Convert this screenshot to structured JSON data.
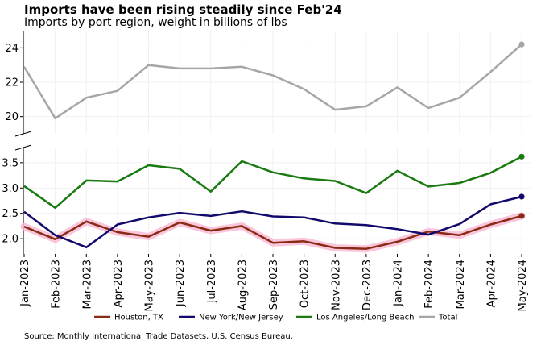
{
  "chart_data": {
    "type": "line",
    "title": "Imports have been rising steadily since Feb'24",
    "subtitle": "Imports by port region, weight in billions of lbs",
    "source": "Source: Monthly International Trade Datasets, U.S. Census Bureau.",
    "categories": [
      "Jan-2023",
      "Feb-2023",
      "Mar-2023",
      "Apr-2023",
      "May-2023",
      "Jun-2023",
      "Jul-2023",
      "Aug-2023",
      "Sep-2023",
      "Oct-2023",
      "Nov-2023",
      "Dec-2023",
      "Jan-2024",
      "Feb-2024",
      "Mar-2024",
      "Apr-2024",
      "May-2024"
    ],
    "broken_y_axis": true,
    "panels": [
      {
        "id": "upper",
        "ylim": [
          19.0,
          25.0
        ],
        "yticks": [
          "20",
          "22",
          "24"
        ],
        "ytick_values": [
          20,
          22,
          24
        ]
      },
      {
        "id": "lower",
        "ylim": [
          1.7,
          3.8
        ],
        "yticks": [
          "2.0",
          "2.5",
          "3.0",
          "3.5"
        ],
        "ytick_values": [
          2.0,
          2.5,
          3.0,
          3.5
        ]
      }
    ],
    "grid": true,
    "legend_position": "bottom",
    "series": [
      {
        "name": "Houston, TX",
        "panel": "lower",
        "color": "#8b2a14",
        "highlight": "#f7b8d2",
        "values": [
          2.24,
          1.99,
          2.34,
          2.13,
          2.04,
          2.32,
          2.16,
          2.25,
          1.92,
          1.95,
          1.82,
          1.8,
          1.94,
          2.14,
          2.07,
          2.28,
          2.45
        ]
      },
      {
        "name": "New York/New Jersey",
        "panel": "lower",
        "color": "#120a6b",
        "values": [
          2.53,
          2.07,
          1.83,
          2.28,
          2.42,
          2.51,
          2.45,
          2.54,
          2.44,
          2.42,
          2.3,
          2.27,
          2.19,
          2.08,
          2.29,
          2.68,
          2.83
        ]
      },
      {
        "name": "Los Angeles/Long Beach",
        "panel": "lower",
        "color": "#1a7a12",
        "values": [
          3.04,
          2.61,
          3.15,
          3.13,
          3.45,
          3.38,
          2.93,
          3.53,
          3.31,
          3.19,
          3.14,
          2.9,
          3.34,
          3.03,
          3.1,
          3.3,
          3.62
        ]
      },
      {
        "name": "Total",
        "panel": "upper",
        "color": "#a6a6a6",
        "values": [
          22.9,
          19.9,
          21.1,
          21.5,
          23.0,
          22.8,
          22.8,
          22.9,
          22.4,
          21.6,
          20.4,
          20.6,
          21.7,
          20.5,
          21.1,
          22.6,
          24.2
        ]
      }
    ]
  }
}
